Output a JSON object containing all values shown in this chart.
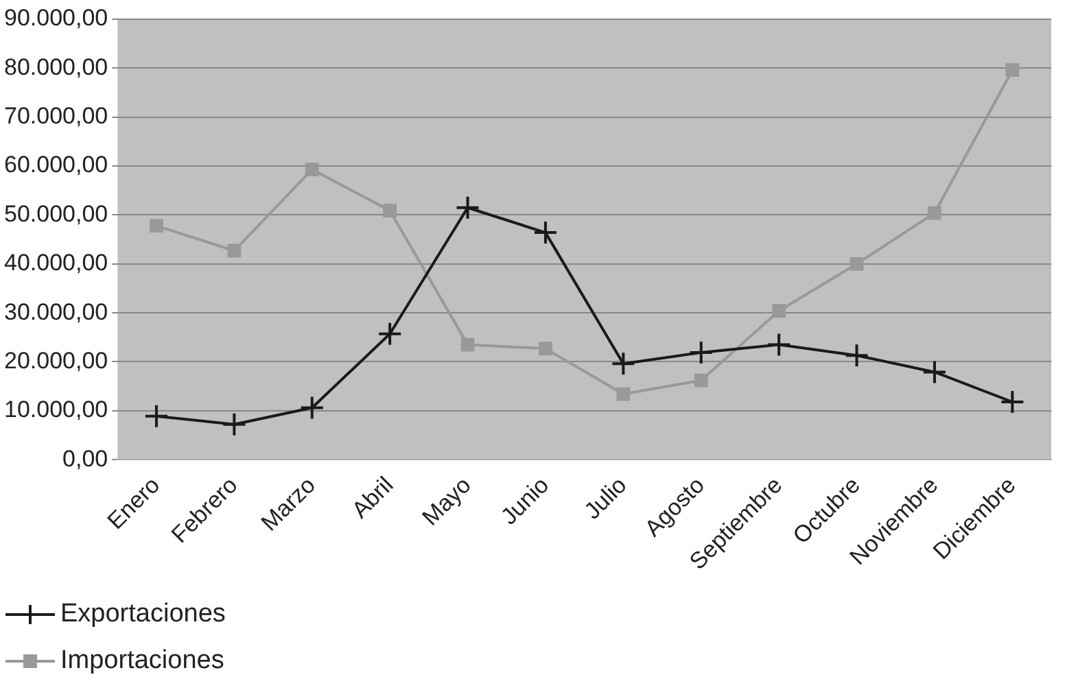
{
  "chart_data": {
    "type": "line",
    "categories": [
      "Enero",
      "Febrero",
      "Marzo",
      "Abril",
      "Mayo",
      "Junio",
      "Julio",
      "Agosto",
      "Septiembre",
      "Octubre",
      "Noviembre",
      "Diciembre"
    ],
    "series": [
      {
        "name": "Exportaciones",
        "color": "#1a1a1a",
        "marker": "cross",
        "values": [
          8900,
          7200,
          10600,
          25700,
          51500,
          46400,
          19600,
          21900,
          23500,
          21300,
          17900,
          11800
        ]
      },
      {
        "name": "Importaciones",
        "color": "#999999",
        "marker": "square",
        "values": [
          47800,
          42700,
          59300,
          50900,
          23500,
          22700,
          13400,
          16200,
          30400,
          40000,
          50400,
          79600
        ]
      }
    ],
    "ylim": [
      0,
      90000
    ],
    "yticks": [
      {
        "value": 0,
        "label": "0,00"
      },
      {
        "value": 10000,
        "label": "10.000,00"
      },
      {
        "value": 20000,
        "label": "20.000,00"
      },
      {
        "value": 30000,
        "label": "30.000,00"
      },
      {
        "value": 40000,
        "label": "40.000,00"
      },
      {
        "value": 50000,
        "label": "50.000,00"
      },
      {
        "value": 60000,
        "label": "60.000,00"
      },
      {
        "value": 70000,
        "label": "70.000,00"
      },
      {
        "value": 80000,
        "label": "80.000,00"
      },
      {
        "value": 90000,
        "label": "90.000,00"
      }
    ],
    "grid": "y",
    "legend": "bottom left",
    "line_style": "solid"
  }
}
